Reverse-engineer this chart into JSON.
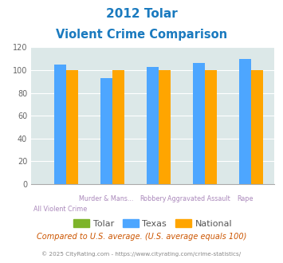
{
  "title_line1": "2012 Tolar",
  "title_line2": "Violent Crime Comparison",
  "cat_line1": [
    "",
    "Murder & Mans...",
    "Robbery",
    "Aggravated Assault",
    "Rape"
  ],
  "cat_line2": [
    "All Violent Crime",
    "",
    "",
    "",
    ""
  ],
  "tolar_values": [
    0,
    0,
    0,
    0,
    0
  ],
  "texas_values": [
    105,
    93,
    103,
    106,
    110
  ],
  "national_values": [
    100,
    100,
    100,
    100,
    100
  ],
  "tolar_color": "#7db42a",
  "texas_color": "#4da6ff",
  "national_color": "#ffa500",
  "bg_color": "#dce8e8",
  "ylim": [
    0,
    120
  ],
  "yticks": [
    0,
    20,
    40,
    60,
    80,
    100,
    120
  ],
  "note": "Compared to U.S. average. (U.S. average equals 100)",
  "copyright": "© 2025 CityRating.com - https://www.cityrating.com/crime-statistics/",
  "title_color": "#1a7abf",
  "note_color": "#cc5500",
  "copyright_color": "#888888"
}
